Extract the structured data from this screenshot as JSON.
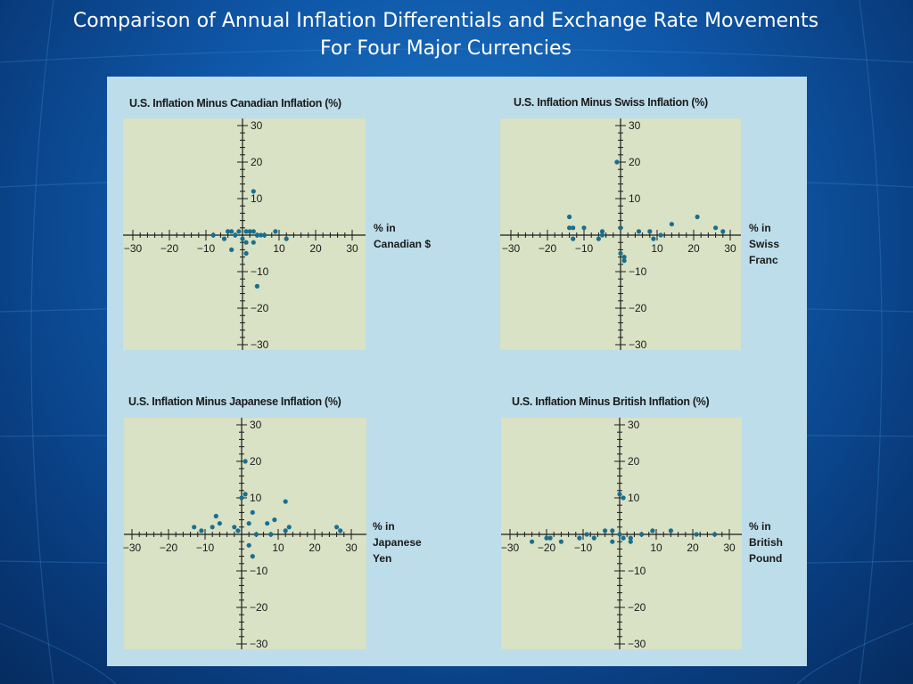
{
  "slide": {
    "title_line1": "Comparison of Annual Inflation Differentials and Exchange Rate Movements",
    "title_line2": "For Four Major Currencies"
  },
  "colors": {
    "background": "#0f57a8",
    "panel": "#bcdde9",
    "plot": "#d9e2c5",
    "point": "#1a6f8f"
  },
  "chart_data": [
    {
      "type": "scatter",
      "title": "U.S. Inflation Minus Canadian Inflation (%)",
      "unit_label": [
        "%    in",
        "Canadian $"
      ],
      "xlim": [
        -30,
        30
      ],
      "ylim": [
        -30,
        30
      ],
      "xticks": [
        -30,
        -20,
        -10,
        10,
        20,
        30
      ],
      "yticks": [
        30,
        20,
        10,
        -10,
        -20,
        -30
      ],
      "grid": false,
      "points": [
        [
          -8,
          0
        ],
        [
          -4,
          1
        ],
        [
          -3,
          1
        ],
        [
          -2,
          0
        ],
        [
          -1,
          1
        ],
        [
          1,
          1
        ],
        [
          2,
          1
        ],
        [
          3,
          1
        ],
        [
          4,
          0
        ],
        [
          5,
          0
        ],
        [
          6,
          0
        ],
        [
          9,
          1
        ],
        [
          -5,
          -1
        ],
        [
          0,
          -1
        ],
        [
          1,
          -2
        ],
        [
          3,
          -2
        ],
        [
          12,
          -1
        ],
        [
          -3,
          -4
        ],
        [
          1,
          -5
        ],
        [
          3,
          12
        ],
        [
          4,
          -14
        ]
      ]
    },
    {
      "type": "scatter",
      "title": "U.S. Inflation Minus Swiss Inflation (%)",
      "unit_label": [
        "%    in",
        "Swiss",
        "Franc"
      ],
      "xlim": [
        -30,
        30
      ],
      "ylim": [
        -30,
        30
      ],
      "xticks": [
        -30,
        -20,
        -10,
        10,
        20,
        30
      ],
      "yticks": [
        30,
        20,
        10,
        -10,
        -20,
        -30
      ],
      "grid": false,
      "points": [
        [
          -14,
          5
        ],
        [
          -14,
          2
        ],
        [
          -13,
          2
        ],
        [
          -10,
          2
        ],
        [
          -5,
          1
        ],
        [
          -5,
          0
        ],
        [
          -13,
          -1
        ],
        [
          -6,
          -1
        ],
        [
          0,
          2
        ],
        [
          -1,
          20
        ],
        [
          0,
          -5
        ],
        [
          1,
          -6
        ],
        [
          1,
          -7
        ],
        [
          5,
          1
        ],
        [
          8,
          1
        ],
        [
          9,
          -1
        ],
        [
          11,
          0
        ],
        [
          14,
          3
        ],
        [
          21,
          5
        ],
        [
          26,
          2
        ],
        [
          28,
          1
        ]
      ]
    },
    {
      "type": "scatter",
      "title": "U.S. Inflation Minus Japanese Inflation (%)",
      "unit_label": [
        "%    in",
        "Japanese",
        "Yen"
      ],
      "xlim": [
        -30,
        30
      ],
      "ylim": [
        -30,
        30
      ],
      "xticks": [
        -30,
        -20,
        -10,
        10,
        20,
        30
      ],
      "yticks": [
        30,
        20,
        10,
        -10,
        -20,
        -30
      ],
      "grid": false,
      "points": [
        [
          -13,
          2
        ],
        [
          -11,
          1
        ],
        [
          -7,
          5
        ],
        [
          -8,
          2
        ],
        [
          -6,
          3
        ],
        [
          -2,
          2
        ],
        [
          -1,
          1
        ],
        [
          0,
          10
        ],
        [
          1,
          11
        ],
        [
          1,
          20
        ],
        [
          2,
          3
        ],
        [
          3,
          6
        ],
        [
          4,
          0
        ],
        [
          7,
          3
        ],
        [
          8,
          0
        ],
        [
          9,
          4
        ],
        [
          12,
          9
        ],
        [
          12,
          1
        ],
        [
          13,
          2
        ],
        [
          26,
          2
        ],
        [
          27,
          1
        ],
        [
          2,
          -3
        ],
        [
          3,
          -6
        ]
      ]
    },
    {
      "type": "scatter",
      "title": "U.S. Inflation Minus British Inflation (%)",
      "unit_label": [
        "%    in",
        "British",
        "Pound"
      ],
      "xlim": [
        -30,
        30
      ],
      "ylim": [
        -30,
        30
      ],
      "xticks": [
        -30,
        -20,
        -10,
        10,
        20,
        30
      ],
      "yticks": [
        30,
        20,
        10,
        -10,
        -20,
        -30
      ],
      "grid": false,
      "points": [
        [
          -24,
          -2
        ],
        [
          -20,
          -1
        ],
        [
          -19,
          -1
        ],
        [
          -16,
          -2
        ],
        [
          -11,
          -1
        ],
        [
          -9,
          0
        ],
        [
          -7,
          -1
        ],
        [
          -4,
          1
        ],
        [
          -2,
          -2
        ],
        [
          -2,
          1
        ],
        [
          0,
          0
        ],
        [
          0,
          11
        ],
        [
          1,
          10
        ],
        [
          1,
          -1
        ],
        [
          3,
          -1
        ],
        [
          3,
          -2
        ],
        [
          6,
          0
        ],
        [
          9,
          1
        ],
        [
          14,
          1
        ],
        [
          21,
          0
        ],
        [
          26,
          0
        ]
      ]
    }
  ]
}
